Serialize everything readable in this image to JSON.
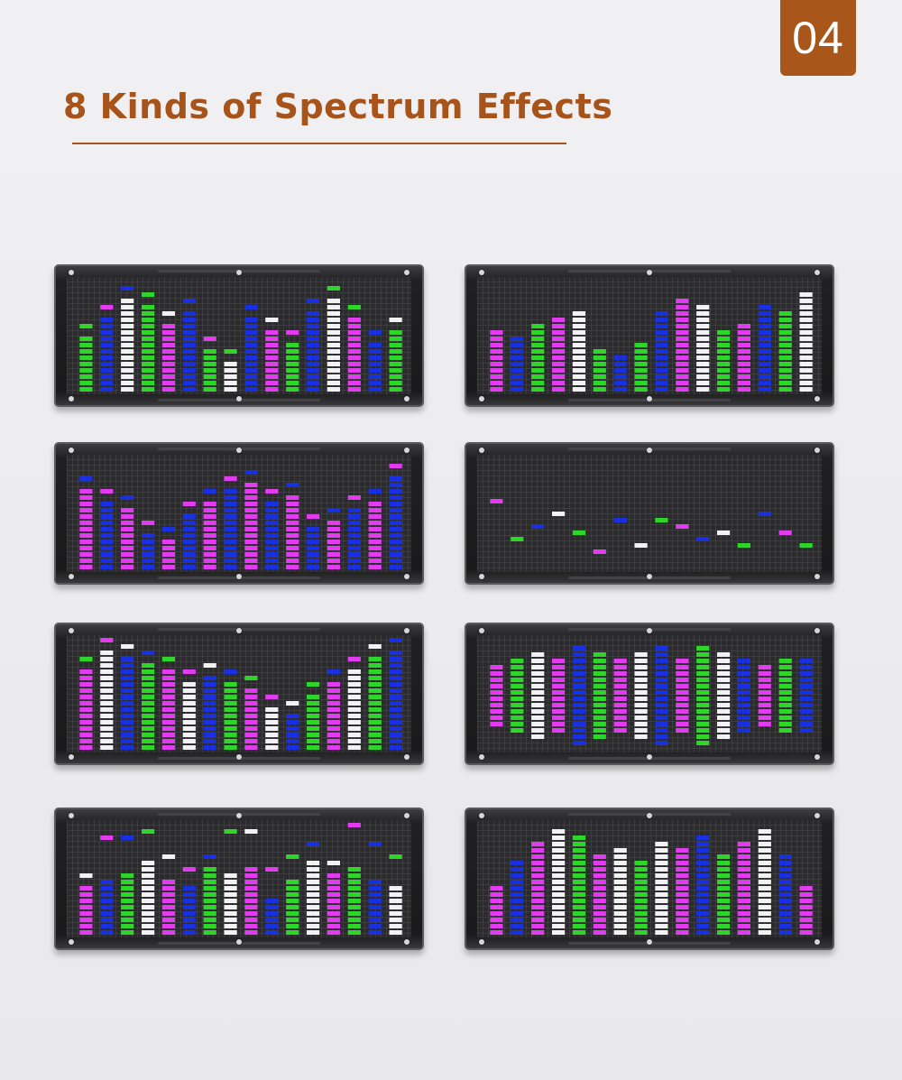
{
  "header": {
    "badge": "04",
    "title": "8 Kinds of Spectrum Effects"
  },
  "colors": {
    "accent": "#a8531a",
    "badge": "#a9561b",
    "magenta": "#e23cf0",
    "blue": "#1930e0",
    "green": "#2ed62a",
    "white": "#f2f2f2"
  },
  "panels": [
    {
      "name": "spectrum-effect-1",
      "effect": "bars-with-floating-peaks",
      "seq": [
        "green",
        "blue",
        "white",
        "green",
        "magenta",
        "blue",
        "green",
        "white",
        "blue",
        "magenta",
        "green",
        "blue",
        "white",
        "magenta",
        "blue",
        "green"
      ],
      "levels": [
        9,
        12,
        15,
        14,
        11,
        13,
        7,
        5,
        12,
        10,
        8,
        13,
        15,
        12,
        8,
        10
      ],
      "peaks": true
    },
    {
      "name": "spectrum-effect-2",
      "effect": "solid-bars",
      "seq": [
        "magenta",
        "blue",
        "green",
        "magenta",
        "white",
        "green",
        "blue",
        "green",
        "blue",
        "magenta",
        "white",
        "green",
        "magenta",
        "blue",
        "green",
        "white"
      ],
      "levels": [
        10,
        9,
        11,
        12,
        13,
        7,
        6,
        8,
        13,
        15,
        14,
        10,
        11,
        14,
        13,
        16
      ],
      "peaks": false
    },
    {
      "name": "spectrum-effect-3",
      "effect": "bars-with-peaks",
      "seq": [
        "magenta",
        "blue",
        "magenta",
        "blue",
        "magenta",
        "blue",
        "magenta",
        "blue",
        "magenta",
        "blue",
        "magenta",
        "blue",
        "magenta",
        "blue",
        "magenta",
        "blue"
      ],
      "levels": [
        13,
        11,
        10,
        6,
        5,
        9,
        11,
        13,
        14,
        11,
        12,
        7,
        8,
        10,
        11,
        15
      ],
      "peaks": true
    },
    {
      "name": "spectrum-effect-4",
      "effect": "floating-dots",
      "seq": [
        "magenta",
        "green",
        "blue",
        "white",
        "green",
        "magenta",
        "blue",
        "white",
        "green",
        "magenta",
        "blue",
        "white",
        "green",
        "blue",
        "magenta",
        "green"
      ],
      "levels": [
        11,
        5,
        7,
        9,
        6,
        3,
        8,
        4,
        8,
        7,
        5,
        6,
        4,
        9,
        6,
        4
      ],
      "peaks": false
    },
    {
      "name": "spectrum-effect-5",
      "effect": "bars-with-peaks",
      "seq": [
        "magenta",
        "white",
        "blue",
        "green",
        "magenta",
        "white",
        "blue",
        "green",
        "magenta",
        "white",
        "blue",
        "green",
        "magenta",
        "white",
        "green",
        "blue"
      ],
      "levels": [
        13,
        16,
        15,
        14,
        13,
        11,
        12,
        11,
        10,
        7,
        6,
        9,
        11,
        13,
        15,
        16
      ],
      "peaks": true
    },
    {
      "name": "spectrum-effect-6",
      "effect": "center-mirrored",
      "seq": [
        "magenta",
        "green",
        "white",
        "magenta",
        "blue",
        "green",
        "magenta",
        "white",
        "blue",
        "magenta",
        "green",
        "white",
        "blue",
        "magenta",
        "green",
        "blue"
      ],
      "levels": [
        10,
        12,
        14,
        12,
        16,
        13,
        11,
        14,
        15,
        12,
        16,
        14,
        12,
        10,
        11,
        12
      ],
      "peaks": false
    },
    {
      "name": "spectrum-effect-7",
      "effect": "bars-with-scattered-peaks",
      "seq": [
        "magenta",
        "blue",
        "green",
        "white",
        "magenta",
        "blue",
        "green",
        "white",
        "magenta",
        "blue",
        "green",
        "white",
        "magenta",
        "green",
        "blue",
        "white"
      ],
      "levels": [
        8,
        9,
        10,
        12,
        9,
        8,
        11,
        10,
        11,
        6,
        9,
        12,
        10,
        11,
        9,
        8
      ],
      "peaks": true
    },
    {
      "name": "spectrum-effect-8",
      "effect": "solid-bars",
      "seq": [
        "magenta",
        "blue",
        "magenta",
        "white",
        "green",
        "magenta",
        "white",
        "green",
        "white",
        "magenta",
        "blue",
        "green",
        "magenta",
        "white",
        "blue",
        "magenta"
      ],
      "levels": [
        8,
        12,
        15,
        17,
        16,
        13,
        14,
        12,
        15,
        14,
        16,
        13,
        15,
        17,
        13,
        8
      ],
      "peaks": false
    }
  ]
}
